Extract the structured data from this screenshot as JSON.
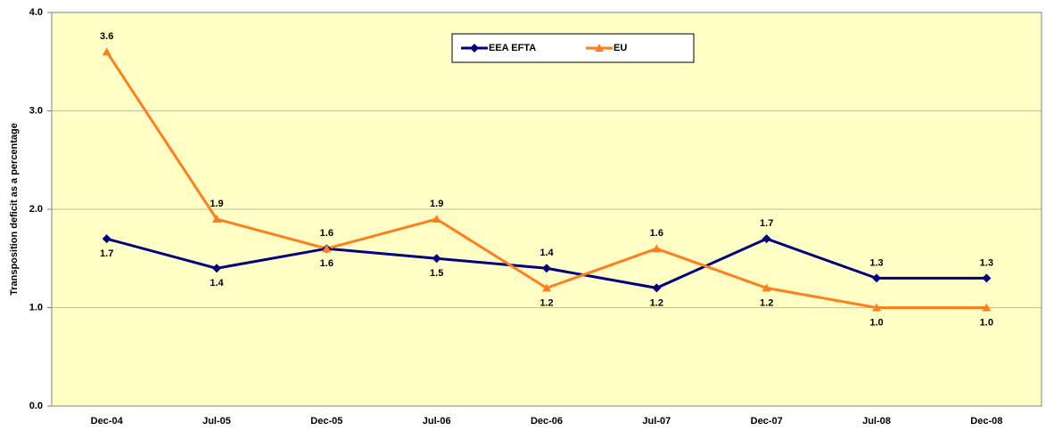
{
  "chart_data": {
    "type": "line",
    "y_label": "Transposition deficit as a percentage",
    "categories": [
      "Dec-04",
      "Jul-05",
      "Dec-05",
      "Jul-06",
      "Dec-06",
      "Jul-07",
      "Dec-07",
      "Jul-08",
      "Dec-08"
    ],
    "series": [
      {
        "name": "EEA EFTA",
        "color": "#000080",
        "marker": "diamond",
        "values": [
          1.7,
          1.4,
          1.6,
          1.5,
          1.4,
          1.2,
          1.7,
          1.3,
          1.3
        ],
        "value_labels": [
          "1.7",
          "1.4",
          "1.6",
          "1.5",
          "1.4",
          "1.2",
          "1.7",
          "1.3",
          "1.3"
        ]
      },
      {
        "name": "EU",
        "color": "#ff7f1e",
        "marker": "triangle",
        "values": [
          3.6,
          1.9,
          1.6,
          1.9,
          1.2,
          1.6,
          1.2,
          1.0,
          1.0
        ],
        "value_labels": [
          "3.6",
          "1.9",
          "1.6",
          "1.9",
          "1.2",
          "1.6",
          "1.2",
          "1.0",
          "1.0"
        ]
      }
    ],
    "ylim": [
      0,
      4
    ],
    "yticks": [
      {
        "value": 0,
        "label": "0.0"
      },
      {
        "value": 1,
        "label": "1.0"
      },
      {
        "value": 2,
        "label": "2.0"
      },
      {
        "value": 3,
        "label": "3.0"
      },
      {
        "value": 4,
        "label": "4.0"
      }
    ],
    "grid": true,
    "legend": "top",
    "background": "#ffffc6"
  }
}
